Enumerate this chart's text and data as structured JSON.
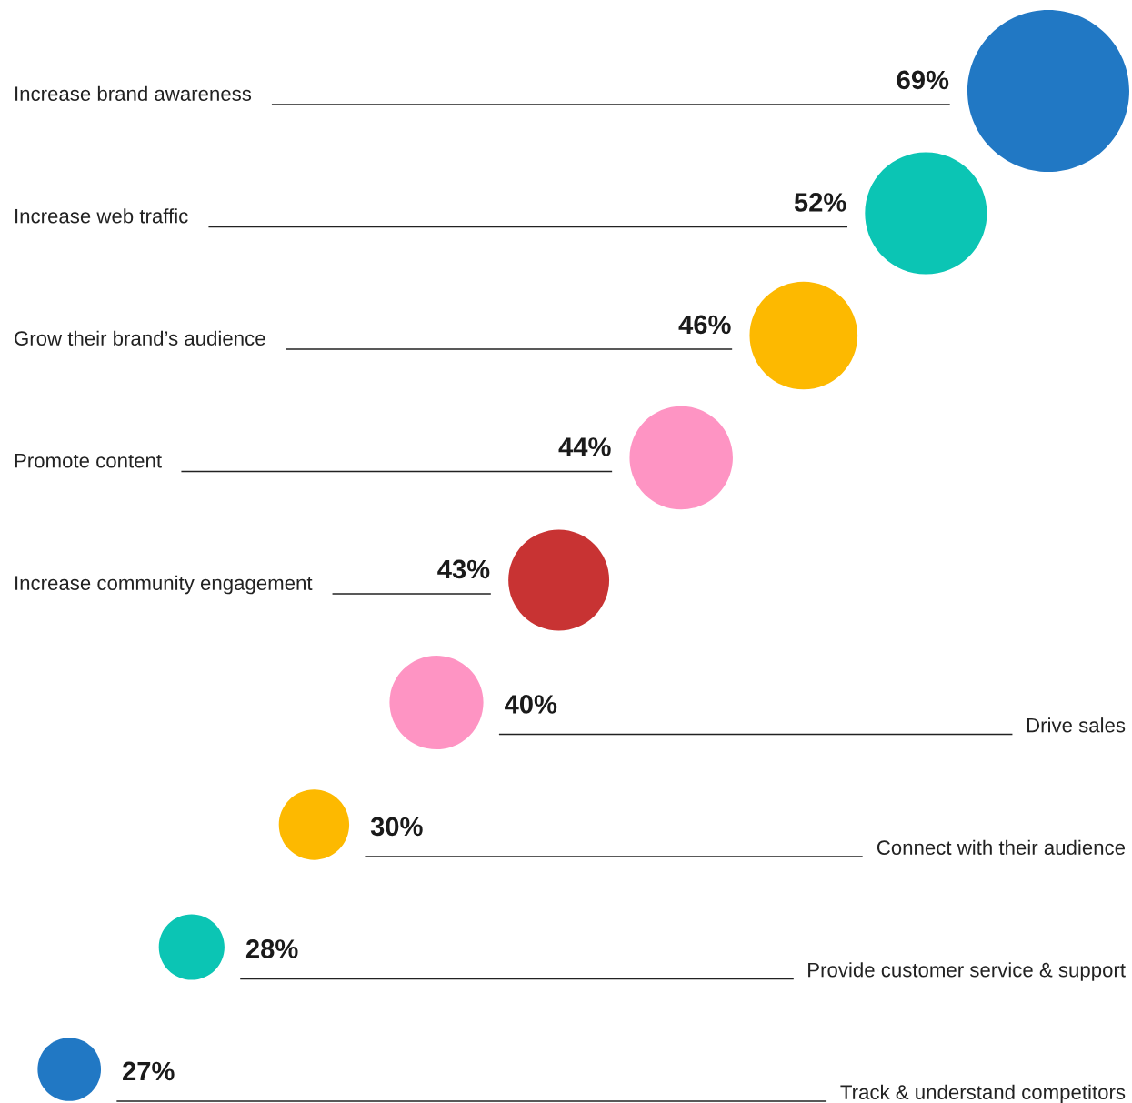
{
  "chart_data": {
    "type": "other",
    "categories": [
      "Increase brand awareness",
      "Increase web traffic",
      "Grow their brand’s audience",
      "Promote content",
      "Increase community engagement",
      "Drive sales",
      "Connect with their audience",
      "Provide customer service & support",
      "Track & understand competitors"
    ],
    "values": [
      69,
      52,
      46,
      44,
      43,
      40,
      30,
      28,
      27
    ],
    "value_labels": [
      "69%",
      "52%",
      "46%",
      "44%",
      "43%",
      "40%",
      "30%",
      "28%",
      "27%"
    ],
    "colors": [
      "#2178c4",
      "#0bc5b4",
      "#fdb900",
      "#fe94c3",
      "#c83333",
      "#fe94c3",
      "#fdb900",
      "#0bc5b4",
      "#2178c4"
    ]
  }
}
